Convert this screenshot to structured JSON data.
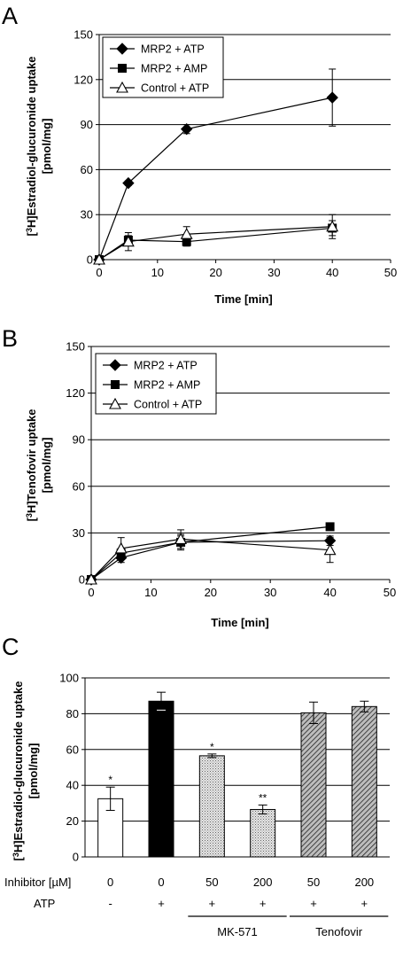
{
  "panels": {
    "A": {
      "letter": "A"
    },
    "B": {
      "letter": "B"
    },
    "C": {
      "letter": "C"
    }
  },
  "chart_data": [
    {
      "type": "line",
      "panel": "A",
      "xlabel": "Time [min]",
      "ylabel_line1": "[3H]Estradiol-glucuronide uptake",
      "ylabel_line2": "[pmol/mg]",
      "xlim": [
        0,
        50
      ],
      "ylim": [
        0,
        150
      ],
      "xticks": [
        0,
        10,
        20,
        30,
        40,
        50
      ],
      "yticks": [
        0,
        30,
        60,
        90,
        120,
        150
      ],
      "grid": "horizontal",
      "legend": "top-left",
      "series": [
        {
          "name": "MRP2 + ATP",
          "marker": "diamond",
          "x": [
            0,
            5,
            15,
            40
          ],
          "y": [
            0,
            51,
            87,
            108
          ],
          "err": [
            0,
            1.5,
            3,
            19
          ]
        },
        {
          "name": "MRP2 + AMP",
          "marker": "square",
          "x": [
            0,
            5,
            15,
            40
          ],
          "y": [
            0,
            13,
            12,
            21
          ],
          "err": [
            0,
            3,
            3,
            5
          ]
        },
        {
          "name": "Control + ATP",
          "marker": "triangle-open",
          "x": [
            0,
            5,
            15,
            40
          ],
          "y": [
            0,
            12,
            17,
            22
          ],
          "err": [
            0,
            6,
            5,
            8
          ]
        }
      ]
    },
    {
      "type": "line",
      "panel": "B",
      "xlabel": "Time [min]",
      "ylabel_line1": "[3H]Tenofovir uptake",
      "ylabel_line2": "[pmol/mg]",
      "xlim": [
        0,
        50
      ],
      "ylim": [
        0,
        150
      ],
      "xticks": [
        0,
        10,
        20,
        30,
        40,
        50
      ],
      "yticks": [
        0,
        30,
        60,
        90,
        120,
        150
      ],
      "grid": "horizontal",
      "legend": "top-left",
      "series": [
        {
          "name": "MRP2 + ATP",
          "marker": "diamond",
          "x": [
            0,
            5,
            15,
            40
          ],
          "y": [
            0,
            14,
            24,
            25
          ],
          "err": [
            0,
            3,
            5,
            3
          ]
        },
        {
          "name": "MRP2 + AMP",
          "marker": "square",
          "x": [
            0,
            5,
            15,
            40
          ],
          "y": [
            0,
            17,
            24,
            34
          ],
          "err": [
            0,
            3,
            4,
            2
          ]
        },
        {
          "name": "Control + ATP",
          "marker": "triangle-open",
          "x": [
            0,
            5,
            15,
            40
          ],
          "y": [
            0,
            20,
            26,
            19
          ],
          "err": [
            0,
            7,
            6,
            8
          ]
        }
      ]
    },
    {
      "type": "bar",
      "panel": "C",
      "ylabel_line1": "[3H]Estradiol-glucuronide uptake",
      "ylabel_line2": "[pmol/mg]",
      "ylim": [
        0,
        100
      ],
      "yticks": [
        0,
        20,
        40,
        60,
        80,
        100
      ],
      "grid": "horizontal",
      "row_labels": {
        "inhibitor": "Inhibitor [µM]",
        "atp": "ATP"
      },
      "categories": [
        "0",
        "0",
        "50",
        "200",
        "50",
        "200"
      ],
      "atp": [
        "-",
        "+",
        "+",
        "+",
        "+",
        "+"
      ],
      "values": [
        32.5,
        87,
        56.5,
        26.5,
        80.5,
        84
      ],
      "errors": [
        6.5,
        5,
        1,
        2.5,
        6,
        3
      ],
      "fills": [
        "white",
        "black",
        "dotted",
        "dotted",
        "hatched",
        "hatched"
      ],
      "significance": [
        "*",
        "",
        "*",
        "**",
        "",
        ""
      ],
      "groups": [
        {
          "label": "MK-571",
          "bars": [
            2,
            3
          ]
        },
        {
          "label": "Tenofovir",
          "bars": [
            4,
            5
          ]
        }
      ]
    }
  ]
}
